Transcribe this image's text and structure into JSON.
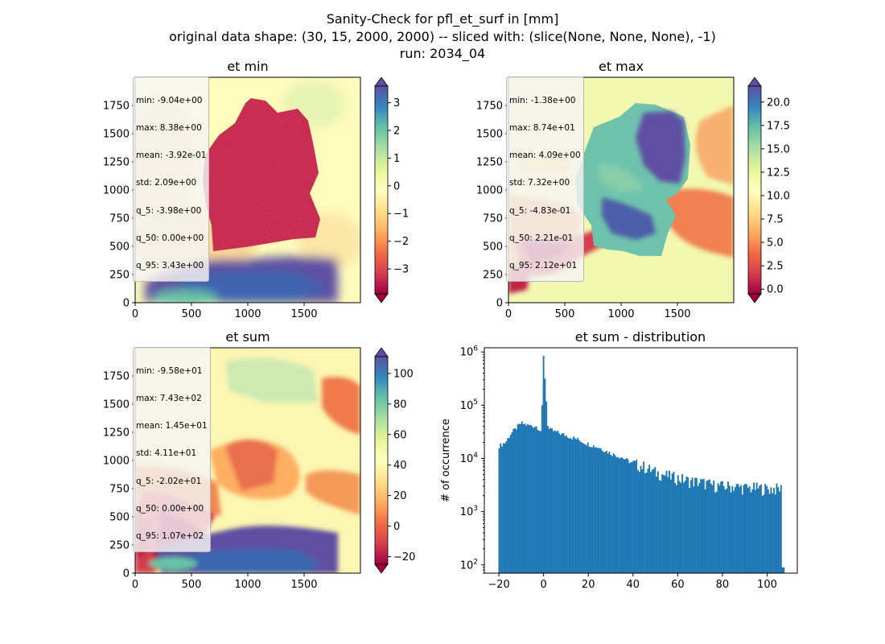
{
  "figure": {
    "title_lines": [
      "Sanity-Check for pfl_et_surf in [mm]",
      "original data shape: (30, 15, 2000, 2000) -- sliced with: (slice(None, None, None), -1)",
      "run: 2034_04"
    ]
  },
  "chart_data": [
    {
      "type": "heatmap",
      "title": "et min",
      "xlim": [
        0,
        2000
      ],
      "ylim": [
        0,
        2000
      ],
      "x_ticks": [
        0,
        500,
        1000,
        1500
      ],
      "y_ticks": [
        0,
        250,
        500,
        750,
        1000,
        1250,
        1500,
        1750
      ],
      "colormap": "Spectral",
      "colorbar": {
        "range": [
          -3.9,
          3.6
        ],
        "ticks": [
          -3,
          -2,
          -1,
          0,
          1,
          2,
          3
        ],
        "tick_labels": [
          "−3",
          "−2",
          "−1",
          "0",
          "1",
          "2",
          "3"
        ],
        "extend": "both"
      },
      "stats": [
        "min: -9.04e+00",
        "max: 8.38e+00",
        "mean: -3.92e-01",
        "std: 2.09e+00",
        "q_5: -3.98e+00",
        "q_50: 0.00e+00",
        "q_95: 3.43e+00"
      ]
    },
    {
      "type": "heatmap",
      "title": "et max",
      "xlim": [
        0,
        2000
      ],
      "ylim": [
        0,
        2000
      ],
      "x_ticks": [
        0,
        500,
        1000,
        1500
      ],
      "y_ticks": [
        0,
        250,
        500,
        750,
        1000,
        1250,
        1500,
        1750
      ],
      "colormap": "Spectral",
      "colorbar": {
        "range": [
          -0.5,
          21.7
        ],
        "ticks": [
          0,
          2.5,
          5,
          7.5,
          10,
          12.5,
          15,
          17.5,
          20
        ],
        "tick_labels": [
          "0.0",
          "2.5",
          "5.0",
          "7.5",
          "10.0",
          "12.5",
          "15.0",
          "17.5",
          "20.0"
        ],
        "extend": "both"
      },
      "stats": [
        "min: -1.38e+00",
        "max: 8.74e+01",
        "mean: 4.09e+00",
        "std: 7.32e+00",
        "q_5: -4.83e-01",
        "q_50: 2.21e-01",
        "q_95: 2.12e+01"
      ]
    },
    {
      "type": "heatmap",
      "title": "et sum",
      "xlim": [
        0,
        2000
      ],
      "ylim": [
        0,
        2000
      ],
      "x_ticks": [
        0,
        500,
        1000,
        1500
      ],
      "y_ticks": [
        0,
        250,
        500,
        750,
        1000,
        1250,
        1500,
        1750
      ],
      "colormap": "Spectral",
      "colorbar": {
        "range": [
          -25,
          111
        ],
        "ticks": [
          -20,
          0,
          20,
          40,
          60,
          80,
          100
        ],
        "tick_labels": [
          "−20",
          "0",
          "20",
          "40",
          "60",
          "80",
          "100"
        ],
        "extend": "both"
      },
      "stats": [
        "min: -9.58e+01",
        "max: 7.43e+02",
        "mean: 1.45e+01",
        "std: 4.11e+01",
        "q_5: -2.02e+01",
        "q_50: 0.00e+00",
        "q_95: 1.07e+02"
      ]
    },
    {
      "type": "bar",
      "title": "et sum - distribution",
      "xlabel": "",
      "ylabel": "# of occurrence",
      "yscale": "log",
      "xlim": [
        -26.5,
        113.5
      ],
      "ylim": [
        70,
        1200000
      ],
      "x_ticks": [
        -20,
        0,
        20,
        40,
        60,
        80,
        100
      ],
      "x_tick_labels": [
        "−20",
        "0",
        "20",
        "40",
        "60",
        "80",
        "100"
      ],
      "y_ticks": [
        100,
        1000,
        10000,
        100000,
        1000000
      ],
      "bar_color": "#1f77b4",
      "bins": {
        "start": -20.2,
        "width": 0.64
      },
      "anchors": [
        [
          -20,
          17000
        ],
        [
          -17,
          20000
        ],
        [
          -15,
          28000
        ],
        [
          -12,
          38000
        ],
        [
          -10,
          46000
        ],
        [
          -7,
          42000
        ],
        [
          -3,
          40000
        ],
        [
          -1,
          32000
        ],
        [
          0,
          850000
        ],
        [
          2,
          36000
        ],
        [
          5,
          32000
        ],
        [
          10,
          27000
        ],
        [
          15,
          23000
        ],
        [
          20,
          18500
        ],
        [
          25,
          16000
        ],
        [
          30,
          12500
        ],
        [
          35,
          10500
        ],
        [
          40,
          8000
        ],
        [
          45,
          7000
        ],
        [
          50,
          5500
        ],
        [
          55,
          4800
        ],
        [
          60,
          4300
        ],
        [
          65,
          3800
        ],
        [
          70,
          3600
        ],
        [
          75,
          3200
        ],
        [
          80,
          3000
        ],
        [
          85,
          3000
        ],
        [
          90,
          2800
        ],
        [
          95,
          2800
        ],
        [
          100,
          2700
        ],
        [
          106.5,
          2700
        ],
        [
          107,
          90
        ]
      ]
    }
  ]
}
